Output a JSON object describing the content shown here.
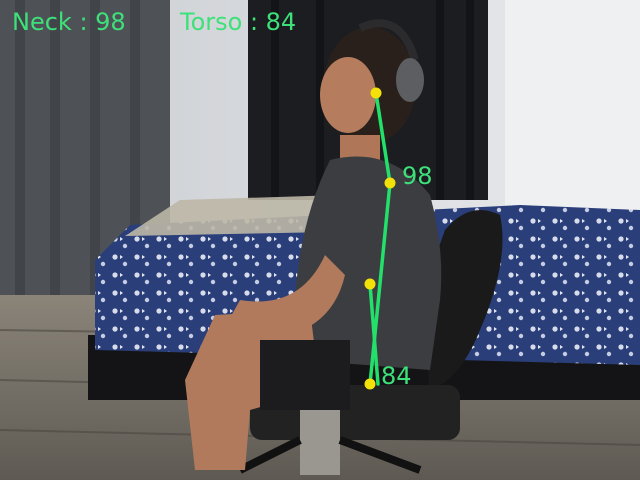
{
  "overlay": {
    "neck_label": "Neck : 98",
    "torso_label": "Torso : 84",
    "neck_angle_label": "98",
    "torso_angle_label": "84"
  },
  "colors": {
    "hud_text": "#3ee07a",
    "skeleton_line": "#22e06a",
    "keypoint": "#f2e20a"
  }
}
